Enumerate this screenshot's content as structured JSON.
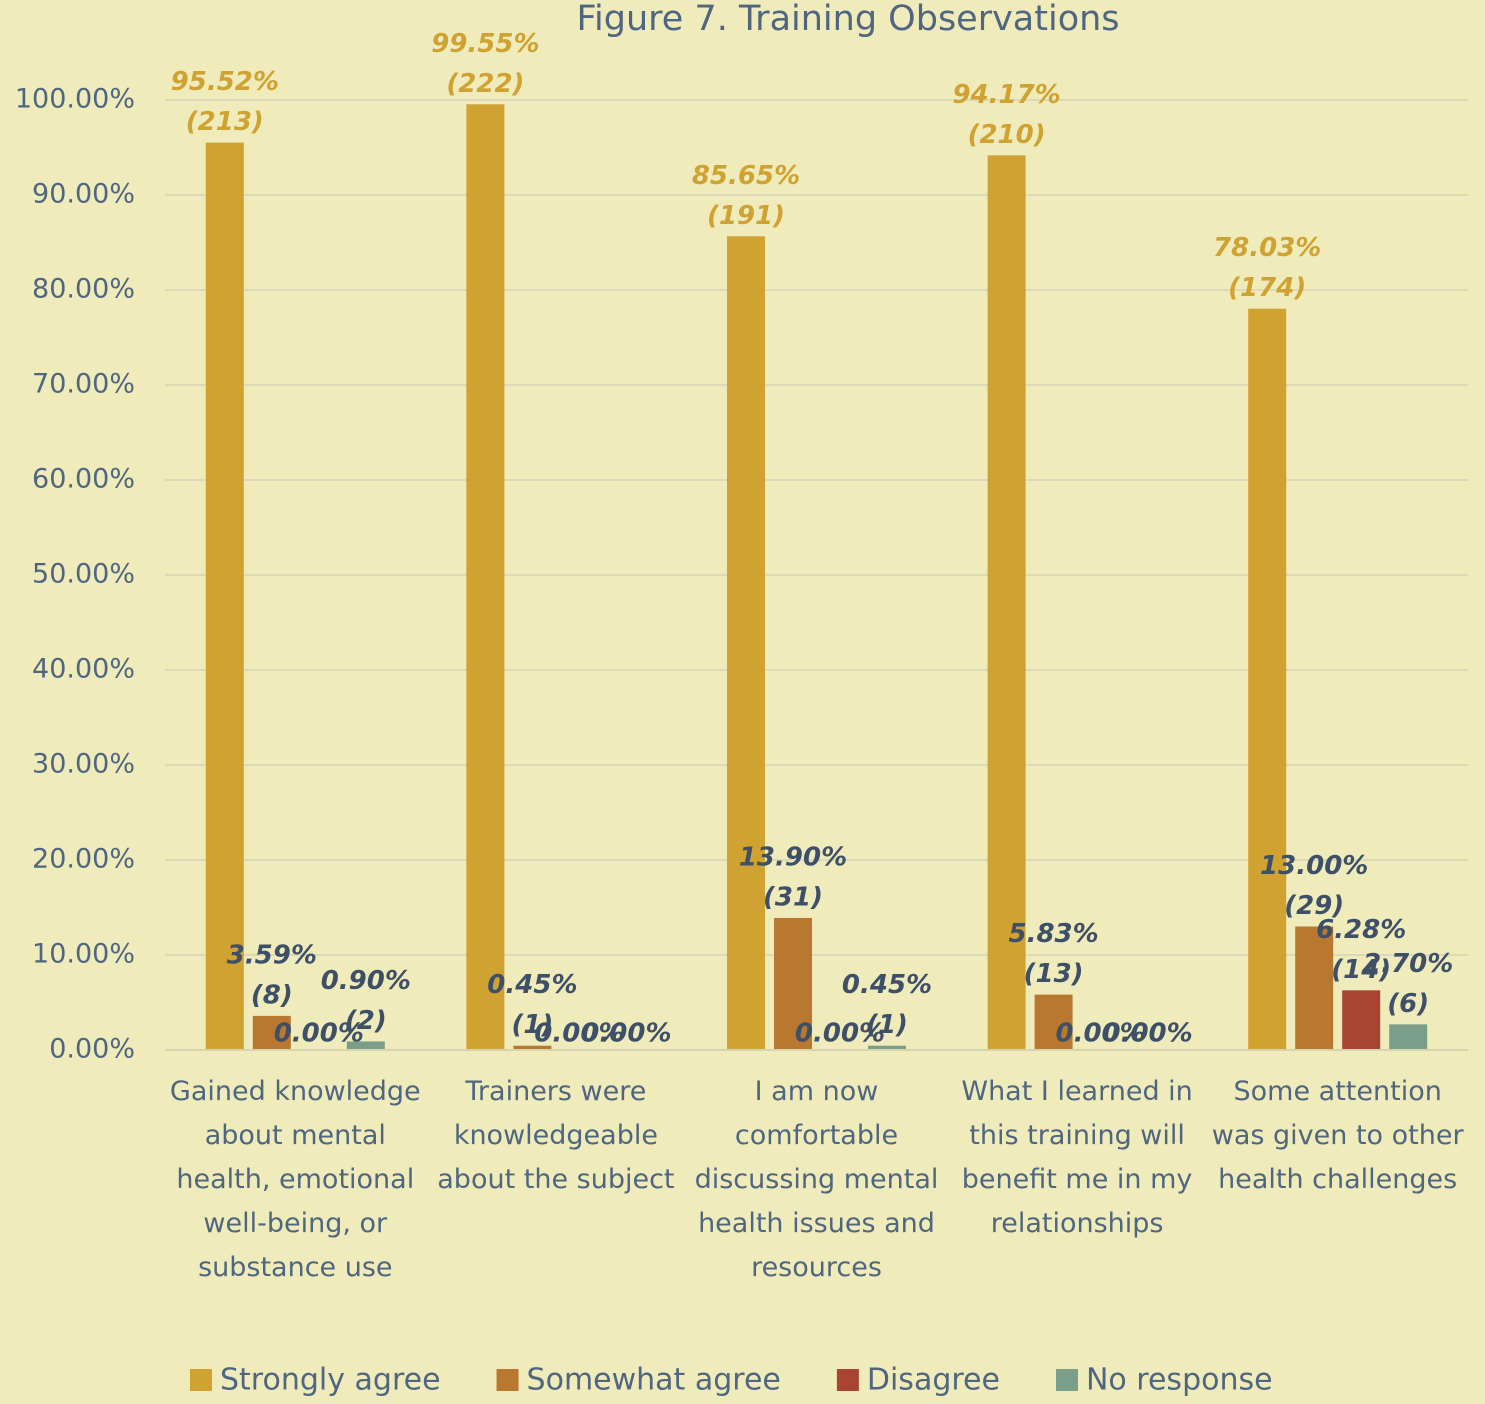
{
  "chart_data": {
    "type": "bar",
    "title": "Figure 7. Training Observations",
    "categories": [
      "Gained knowledge about mental health, emotional well-being, or substance use",
      "Trainers were knowledgeable about the subject",
      "I am now comfortable discussing mental health issues and resources",
      "What I learned in this training will benefit me in my relationships",
      "Some attention was given to other health challenges"
    ],
    "series": [
      {
        "name": "Strongly agree",
        "color": "#d0a231",
        "values": [
          95.52,
          99.55,
          85.65,
          94.17,
          78.03
        ],
        "value_labels": [
          "95.52%",
          "99.55%",
          "85.65%",
          "94.17%",
          "78.03%"
        ],
        "count_labels": [
          "(213)",
          "(222)",
          "(191)",
          "(210)",
          "(174)"
        ]
      },
      {
        "name": "Somewhat agree",
        "color": "#b8782f",
        "values": [
          3.59,
          0.45,
          13.9,
          5.83,
          13.0
        ],
        "value_labels": [
          "3.59%",
          "0.45%",
          "13.90%",
          "5.83%",
          "13.00%"
        ],
        "count_labels": [
          "(8)",
          "(1)",
          "(31)",
          "(13)",
          "(29)"
        ]
      },
      {
        "name": "Disagree",
        "color": "#a84432",
        "values": [
          0,
          0,
          0,
          0,
          6.28
        ],
        "value_labels": [
          "0.00%",
          "0.00%",
          "0.00%",
          "0.00%",
          "6.28%"
        ],
        "count_labels": [
          null,
          null,
          null,
          null,
          "(14)"
        ]
      },
      {
        "name": "No response",
        "color": "#7a9e8a",
        "values": [
          0.9,
          0,
          0.45,
          0,
          2.7
        ],
        "value_labels": [
          "0.90%",
          "0.00%",
          "0.45%",
          "0.00%",
          "2.70%"
        ],
        "count_labels": [
          "(2)",
          null,
          "(1)",
          null,
          "(6)"
        ]
      }
    ],
    "ylim": [
      0,
      100
    ],
    "yticks": [
      {
        "value": 0,
        "label": "0.00%"
      },
      {
        "value": 10,
        "label": "10.00%"
      },
      {
        "value": 20,
        "label": "20.00%"
      },
      {
        "value": 30,
        "label": "30.00%"
      },
      {
        "value": 40,
        "label": "40.00%"
      },
      {
        "value": 50,
        "label": "50.00%"
      },
      {
        "value": 60,
        "label": "60.00%"
      },
      {
        "value": 70,
        "label": "70.00%"
      },
      {
        "value": 80,
        "label": "80.00%"
      },
      {
        "value": 90,
        "label": "90.00%"
      },
      {
        "value": 100,
        "label": "100.00%"
      }
    ],
    "grid": true,
    "legend": "bottom"
  }
}
